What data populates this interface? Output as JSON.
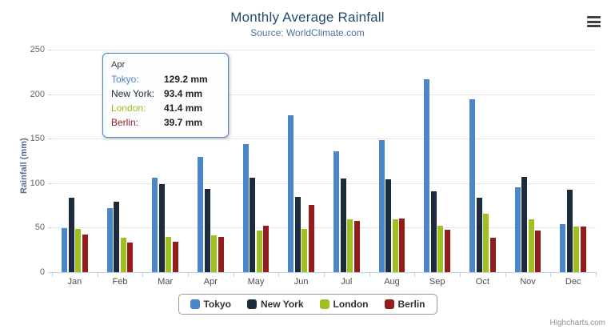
{
  "chart": {
    "title": "Monthly Average Rainfall",
    "subtitle": "Source: WorldClimate.com",
    "credits": "Highcharts.com",
    "accent_color": "#4a86c8"
  },
  "chart_data": {
    "type": "bar",
    "title": "Monthly Average Rainfall",
    "subtitle": "Source: WorldClimate.com",
    "xlabel": "",
    "ylabel": "Rainfall (mm)",
    "ylim": [
      0,
      250
    ],
    "yticks": [
      0,
      50,
      100,
      150,
      200,
      250
    ],
    "grid": true,
    "legend_position": "bottom",
    "categories": [
      "Jan",
      "Feb",
      "Mar",
      "Apr",
      "May",
      "Jun",
      "Jul",
      "Aug",
      "Sep",
      "Oct",
      "Nov",
      "Dec"
    ],
    "series": [
      {
        "name": "Tokyo",
        "color": "#4a86c8",
        "values": [
          49.9,
          71.5,
          106.4,
          129.2,
          144.0,
          176.0,
          135.6,
          148.5,
          216.4,
          194.1,
          95.6,
          54.4
        ]
      },
      {
        "name": "New York",
        "color": "#1d2c3c",
        "values": [
          83.6,
          78.8,
          98.5,
          93.4,
          106.0,
          84.5,
          105.0,
          104.3,
          91.2,
          83.5,
          106.6,
          92.3
        ]
      },
      {
        "name": "London",
        "color": "#a0c021",
        "values": [
          48.9,
          38.8,
          39.3,
          41.4,
          47.0,
          48.3,
          59.0,
          59.6,
          52.4,
          65.2,
          59.3,
          51.2
        ]
      },
      {
        "name": "Berlin",
        "color": "#941c1c",
        "values": [
          42.4,
          33.2,
          34.5,
          39.7,
          52.6,
          75.5,
          57.4,
          60.4,
          47.6,
          39.1,
          46.8,
          51.1
        ]
      }
    ]
  },
  "tooltip": {
    "category": "Apr",
    "rows": [
      {
        "label": "Tokyo:",
        "value": "129.2 mm",
        "color": "#4a86c8"
      },
      {
        "label": "New York:",
        "value": "93.4 mm",
        "color": "#1d2c3c"
      },
      {
        "label": "London:",
        "value": "41.4 mm",
        "color": "#a0c021"
      },
      {
        "label": "Berlin:",
        "value": "39.7 mm",
        "color": "#941c1c"
      }
    ]
  }
}
